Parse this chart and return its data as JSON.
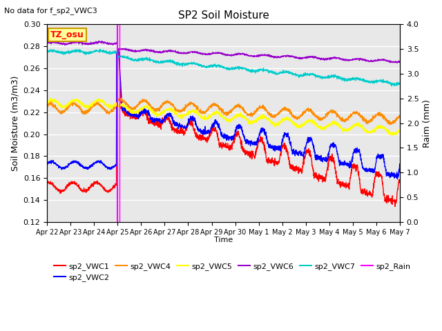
{
  "title": "SP2 Soil Moisture",
  "subtitle": "No data for f_sp2_VWC3",
  "ylabel_left": "Soil Moisture (m3/m3)",
  "ylabel_right": "Raim (mm)",
  "xlabel": "Time",
  "ylim_left": [
    0.12,
    0.3
  ],
  "ylim_right": [
    0.0,
    4.0
  ],
  "x_tick_labels": [
    "Apr 22",
    "Apr 23",
    "Apr 24",
    "Apr 25",
    "Apr 26",
    "Apr 27",
    "Apr 28",
    "Apr 29",
    "Apr 30",
    "May 1",
    "May 2",
    "May 3",
    "May 4",
    "May 5",
    "May 6",
    "May 7"
  ],
  "colors": {
    "sp2_VWC1": "#ff0000",
    "sp2_VWC2": "#0000ff",
    "sp2_VWC4": "#ff8c00",
    "sp2_VWC5": "#ffff00",
    "sp2_VWC6": "#9900cc",
    "sp2_VWC7": "#00cccc",
    "sp2_Rain": "#ff00ff"
  },
  "tz_osu_box": {
    "text": "TZ_osu",
    "facecolor": "#ffff99",
    "edgecolor": "#cc9900"
  },
  "background_color": "#e8e8e8",
  "rain_spike_day": 3.0,
  "figsize": [
    6.4,
    4.8
  ],
  "dpi": 100
}
